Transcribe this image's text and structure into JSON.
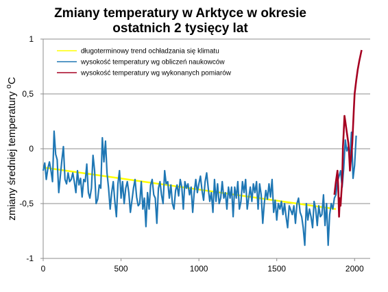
{
  "chart_data": {
    "type": "line",
    "title": [
      "Zmiany temperatury w Arktyce w okresie",
      "ostatnich 2 tysięcy lat"
    ],
    "ylabel": "zmiany średniej temperatury °C",
    "xlabel": "",
    "xlim": [
      0,
      2100
    ],
    "ylim": [
      -1,
      1
    ],
    "x_ticks": [
      0,
      500,
      1000,
      1500,
      2000
    ],
    "y_ticks": [
      1,
      0.5,
      0,
      -0.5,
      -1
    ],
    "y_tick_labels": [
      "1",
      "0,5",
      "0",
      "-0,5",
      "-1"
    ],
    "grid": "horizontal",
    "legend_position": "top-left",
    "series": [
      {
        "name": "długoterminowy trend ochładzania się klimatu",
        "color": "#FFFF00",
        "points": [
          [
            0,
            -0.17
          ],
          [
            1880,
            -0.55
          ]
        ]
      },
      {
        "name": "wysokość temperatury wg obliczeń naukowców",
        "color": "#1F77B4",
        "points": [
          [
            0,
            -0.2
          ],
          [
            10,
            -0.13
          ],
          [
            20,
            -0.28
          ],
          [
            30,
            -0.18
          ],
          [
            40,
            -0.12
          ],
          [
            50,
            -0.2
          ],
          [
            60,
            -0.3
          ],
          [
            70,
            0.16
          ],
          [
            80,
            -0.05
          ],
          [
            90,
            -0.1
          ],
          [
            100,
            -0.4
          ],
          [
            110,
            -0.25
          ],
          [
            120,
            -0.1
          ],
          [
            130,
            0.02
          ],
          [
            140,
            -0.28
          ],
          [
            150,
            -0.32
          ],
          [
            160,
            -0.22
          ],
          [
            170,
            -0.3
          ],
          [
            180,
            -0.28
          ],
          [
            190,
            -0.22
          ],
          [
            200,
            -0.3
          ],
          [
            210,
            -0.4
          ],
          [
            220,
            -0.2
          ],
          [
            230,
            -0.33
          ],
          [
            240,
            -0.27
          ],
          [
            250,
            -0.44
          ],
          [
            260,
            -0.28
          ],
          [
            270,
            -0.3
          ],
          [
            280,
            -0.14
          ],
          [
            290,
            -0.4
          ],
          [
            300,
            -0.45
          ],
          [
            310,
            -0.36
          ],
          [
            320,
            -0.06
          ],
          [
            330,
            -0.2
          ],
          [
            340,
            -0.5
          ],
          [
            350,
            -0.46
          ],
          [
            360,
            -0.33
          ],
          [
            370,
            -0.36
          ],
          [
            380,
            0.1
          ],
          [
            390,
            -0.12
          ],
          [
            400,
            0.07
          ],
          [
            410,
            -0.22
          ],
          [
            420,
            -0.36
          ],
          [
            430,
            -0.55
          ],
          [
            440,
            -0.4
          ],
          [
            450,
            -0.3
          ],
          [
            460,
            -0.48
          ],
          [
            470,
            -0.62
          ],
          [
            480,
            -0.32
          ],
          [
            490,
            -0.2
          ],
          [
            500,
            -0.45
          ],
          [
            510,
            -0.3
          ],
          [
            520,
            -0.5
          ],
          [
            530,
            -0.36
          ],
          [
            540,
            -0.3
          ],
          [
            550,
            -0.4
          ],
          [
            560,
            -0.58
          ],
          [
            570,
            -0.47
          ],
          [
            580,
            -0.36
          ],
          [
            590,
            -0.28
          ],
          [
            600,
            -0.44
          ],
          [
            610,
            -0.52
          ],
          [
            620,
            -0.5
          ],
          [
            630,
            -0.3
          ],
          [
            640,
            -0.55
          ],
          [
            650,
            -0.45
          ],
          [
            660,
            -0.71
          ],
          [
            670,
            -0.4
          ],
          [
            680,
            -0.55
          ],
          [
            690,
            -0.33
          ],
          [
            700,
            -0.28
          ],
          [
            710,
            -0.42
          ],
          [
            720,
            -0.45
          ],
          [
            730,
            -0.68
          ],
          [
            740,
            -0.36
          ],
          [
            750,
            -0.3
          ],
          [
            760,
            -0.42
          ],
          [
            770,
            -0.5
          ],
          [
            780,
            -0.2
          ],
          [
            790,
            -0.32
          ],
          [
            800,
            -0.3
          ],
          [
            810,
            -0.45
          ],
          [
            820,
            -0.33
          ],
          [
            830,
            -0.5
          ],
          [
            840,
            -0.55
          ],
          [
            850,
            -0.38
          ],
          [
            860,
            -0.33
          ],
          [
            870,
            -0.43
          ],
          [
            880,
            -0.28
          ],
          [
            890,
            -0.35
          ],
          [
            900,
            -0.55
          ],
          [
            910,
            -0.3
          ],
          [
            920,
            -0.36
          ],
          [
            930,
            -0.32
          ],
          [
            940,
            -0.42
          ],
          [
            950,
            -0.35
          ],
          [
            960,
            -0.58
          ],
          [
            970,
            -0.4
          ],
          [
            980,
            -0.28
          ],
          [
            990,
            -0.4
          ],
          [
            1000,
            -0.32
          ],
          [
            1010,
            -0.25
          ],
          [
            1020,
            -0.38
          ],
          [
            1030,
            -0.47
          ],
          [
            1040,
            -0.3
          ],
          [
            1050,
            -0.22
          ],
          [
            1060,
            -0.36
          ],
          [
            1070,
            -0.48
          ],
          [
            1080,
            -0.4
          ],
          [
            1090,
            -0.58
          ],
          [
            1100,
            -0.28
          ],
          [
            1110,
            -0.48
          ],
          [
            1120,
            -0.32
          ],
          [
            1130,
            -0.5
          ],
          [
            1140,
            -0.45
          ],
          [
            1150,
            -0.3
          ],
          [
            1160,
            -0.45
          ],
          [
            1170,
            -0.4
          ],
          [
            1180,
            -0.55
          ],
          [
            1190,
            -0.35
          ],
          [
            1200,
            -0.45
          ],
          [
            1210,
            -0.35
          ],
          [
            1220,
            -0.62
          ],
          [
            1230,
            -0.35
          ],
          [
            1240,
            -0.45
          ],
          [
            1250,
            -0.3
          ],
          [
            1260,
            -0.55
          ],
          [
            1270,
            -0.48
          ],
          [
            1280,
            -0.3
          ],
          [
            1290,
            -0.4
          ],
          [
            1300,
            -0.28
          ],
          [
            1310,
            -0.55
          ],
          [
            1320,
            -0.45
          ],
          [
            1330,
            -0.35
          ],
          [
            1340,
            -0.48
          ],
          [
            1350,
            -0.32
          ],
          [
            1360,
            -0.4
          ],
          [
            1370,
            -0.3
          ],
          [
            1380,
            -0.55
          ],
          [
            1390,
            -0.32
          ],
          [
            1400,
            -0.42
          ],
          [
            1410,
            -0.68
          ],
          [
            1420,
            -0.5
          ],
          [
            1430,
            -0.38
          ],
          [
            1440,
            -0.46
          ],
          [
            1450,
            -0.32
          ],
          [
            1460,
            -0.44
          ],
          [
            1470,
            -0.28
          ],
          [
            1480,
            -0.58
          ],
          [
            1490,
            -0.47
          ],
          [
            1500,
            -0.65
          ],
          [
            1510,
            -0.5
          ],
          [
            1520,
            -0.55
          ],
          [
            1530,
            -0.48
          ],
          [
            1540,
            -0.6
          ],
          [
            1550,
            -0.5
          ],
          [
            1560,
            -0.62
          ],
          [
            1570,
            -0.72
          ],
          [
            1580,
            -0.52
          ],
          [
            1590,
            -0.56
          ],
          [
            1600,
            -0.6
          ],
          [
            1610,
            -0.52
          ],
          [
            1620,
            -0.68
          ],
          [
            1630,
            -0.5
          ],
          [
            1640,
            -0.45
          ],
          [
            1650,
            -0.58
          ],
          [
            1660,
            -0.62
          ],
          [
            1670,
            -0.72
          ],
          [
            1680,
            -0.88
          ],
          [
            1690,
            -0.5
          ],
          [
            1700,
            -0.65
          ],
          [
            1710,
            -0.55
          ],
          [
            1720,
            -0.62
          ],
          [
            1730,
            -0.72
          ],
          [
            1740,
            -0.48
          ],
          [
            1750,
            -0.55
          ],
          [
            1760,
            -0.7
          ],
          [
            1770,
            -0.52
          ],
          [
            1780,
            -0.62
          ],
          [
            1790,
            -0.6
          ],
          [
            1800,
            -0.42
          ],
          [
            1810,
            -0.7
          ],
          [
            1820,
            -0.5
          ],
          [
            1830,
            -0.88
          ],
          [
            1840,
            -0.6
          ],
          [
            1850,
            -0.5
          ],
          [
            1860,
            -0.55
          ],
          [
            1870,
            -0.45
          ],
          [
            1880,
            -0.42
          ],
          [
            1890,
            -0.3
          ],
          [
            1900,
            -0.25
          ],
          [
            1910,
            -0.2
          ],
          [
            1920,
            -0.35
          ],
          [
            1930,
            -0.18
          ],
          [
            1940,
            0.08
          ],
          [
            1950,
            -0.02
          ],
          [
            1960,
            0.02
          ],
          [
            1970,
            -0.08
          ],
          [
            1980,
            0.15
          ],
          [
            1990,
            -0.27
          ],
          [
            2000,
            -0.15
          ],
          [
            2010,
            0.12
          ]
        ]
      },
      {
        "name": "wysokość temperatury wg wykonanych pomiarów",
        "color": "#A50021",
        "points": [
          [
            1870,
            -0.42
          ],
          [
            1880,
            -0.3
          ],
          [
            1890,
            -0.2
          ],
          [
            1895,
            -0.35
          ],
          [
            1900,
            -0.62
          ],
          [
            1905,
            -0.45
          ],
          [
            1910,
            -0.52
          ],
          [
            1915,
            -0.4
          ],
          [
            1920,
            -0.3
          ],
          [
            1925,
            0.02
          ],
          [
            1930,
            0.15
          ],
          [
            1935,
            0.3
          ],
          [
            1940,
            0.25
          ],
          [
            1950,
            0.15
          ],
          [
            1960,
            0.05
          ],
          [
            1965,
            -0.05
          ],
          [
            1970,
            -0.2
          ],
          [
            1975,
            -0.12
          ],
          [
            1980,
            -0.05
          ],
          [
            1985,
            0.05
          ],
          [
            1990,
            0.2
          ],
          [
            1995,
            0.35
          ],
          [
            2000,
            0.5
          ],
          [
            2010,
            0.62
          ],
          [
            2020,
            0.72
          ],
          [
            2030,
            0.8
          ],
          [
            2045,
            0.9
          ]
        ]
      }
    ]
  }
}
